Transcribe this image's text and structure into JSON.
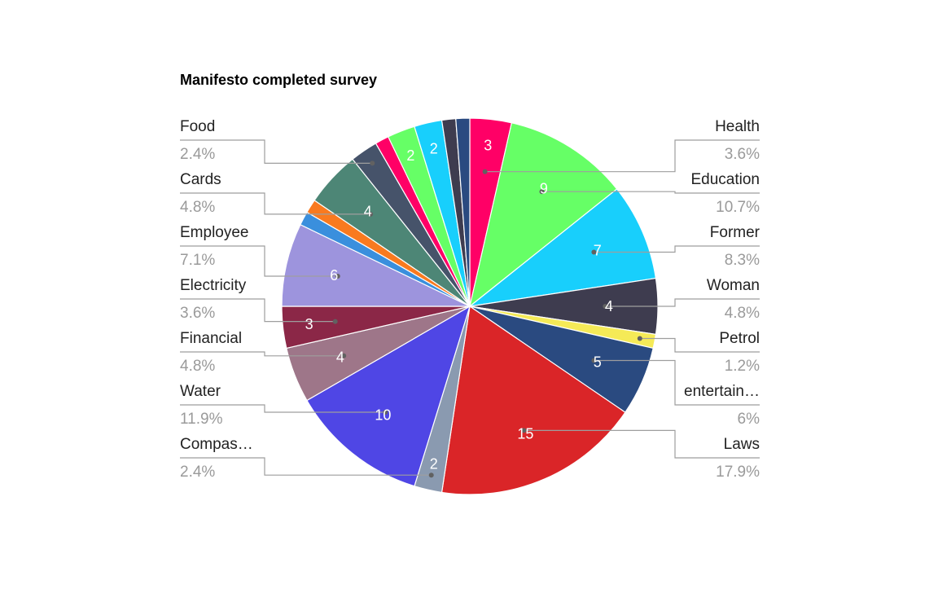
{
  "title": "Manifesto completed survey",
  "chart_data": {
    "type": "pie",
    "title": "Manifesto completed survey",
    "slices": [
      {
        "value": 3,
        "color": "#ff0066",
        "show_value": true,
        "value_label": "3",
        "category": "Health",
        "percent": "3.6%",
        "side": "right"
      },
      {
        "value": 9,
        "color": "#66ff66",
        "show_value": true,
        "value_label": "9",
        "category": "Education",
        "percent": "10.7%",
        "side": "right"
      },
      {
        "value": 7,
        "color": "#18cffc",
        "show_value": true,
        "value_label": "7",
        "category": "Former",
        "percent": "8.3%",
        "side": "right"
      },
      {
        "value": 4,
        "color": "#3e3c4f",
        "show_value": true,
        "value_label": "4",
        "category": "Woman",
        "percent": "4.8%",
        "side": "right"
      },
      {
        "value": 1,
        "color": "#f5ea57",
        "show_value": false,
        "value_label": "1",
        "category": "Petrol",
        "percent": "1.2%",
        "side": "right"
      },
      {
        "value": 5,
        "color": "#2a4a80",
        "show_value": true,
        "value_label": "5",
        "category": "entertain…",
        "percent": "6%",
        "side": "right"
      },
      {
        "value": 15,
        "color": "#da2528",
        "show_value": true,
        "value_label": "15",
        "category": "Laws",
        "percent": "17.9%",
        "side": "right"
      },
      {
        "value": 2,
        "color": "#8a9ab0",
        "show_value": true,
        "value_label": "2",
        "category": "Compas…",
        "percent": "2.4%",
        "side": "left"
      },
      {
        "value": 10,
        "color": "#4f46e5",
        "show_value": true,
        "value_label": "10",
        "category": "Water",
        "percent": "11.9%",
        "side": "left"
      },
      {
        "value": 4,
        "color": "#9e7689",
        "show_value": true,
        "value_label": "4",
        "category": "Financial",
        "percent": "4.8%",
        "side": "left"
      },
      {
        "value": 3,
        "color": "#8b2747",
        "show_value": true,
        "value_label": "3",
        "category": "Electricity",
        "percent": "3.6%",
        "side": "left"
      },
      {
        "value": 6,
        "color": "#9d94dd",
        "show_value": true,
        "value_label": "6",
        "category": "Employee",
        "percent": "7.1%",
        "side": "left"
      },
      {
        "value": 1,
        "color": "#3a8fdd",
        "show_value": false,
        "value_label": "1",
        "category": "",
        "percent": "",
        "side": ""
      },
      {
        "value": 1,
        "color": "#f97a1f",
        "show_value": false,
        "value_label": "1",
        "category": "",
        "percent": "",
        "side": ""
      },
      {
        "value": 4,
        "color": "#4d8676",
        "show_value": true,
        "value_label": "4",
        "category": "Cards",
        "percent": "4.8%",
        "side": "left"
      },
      {
        "value": 2,
        "color": "#46536a",
        "show_value": false,
        "value_label": "2",
        "category": "Food",
        "percent": "2.4%",
        "side": "left"
      },
      {
        "value": 1,
        "color": "#ff0066",
        "show_value": false,
        "value_label": "1",
        "category": "",
        "percent": "",
        "side": ""
      },
      {
        "value": 2,
        "color": "#66ff66",
        "show_value": true,
        "value_label": "2",
        "category": "",
        "percent": "",
        "side": ""
      },
      {
        "value": 2,
        "color": "#18cffc",
        "show_value": true,
        "value_label": "2",
        "category": "",
        "percent": "",
        "side": ""
      },
      {
        "value": 1,
        "color": "#3e3c4f",
        "show_value": false,
        "value_label": "1",
        "category": "",
        "percent": "",
        "side": ""
      },
      {
        "value": 1,
        "color": "#2a4a80",
        "show_value": false,
        "value_label": "1",
        "category": "",
        "percent": "",
        "side": ""
      }
    ],
    "legend": "labels-around"
  }
}
